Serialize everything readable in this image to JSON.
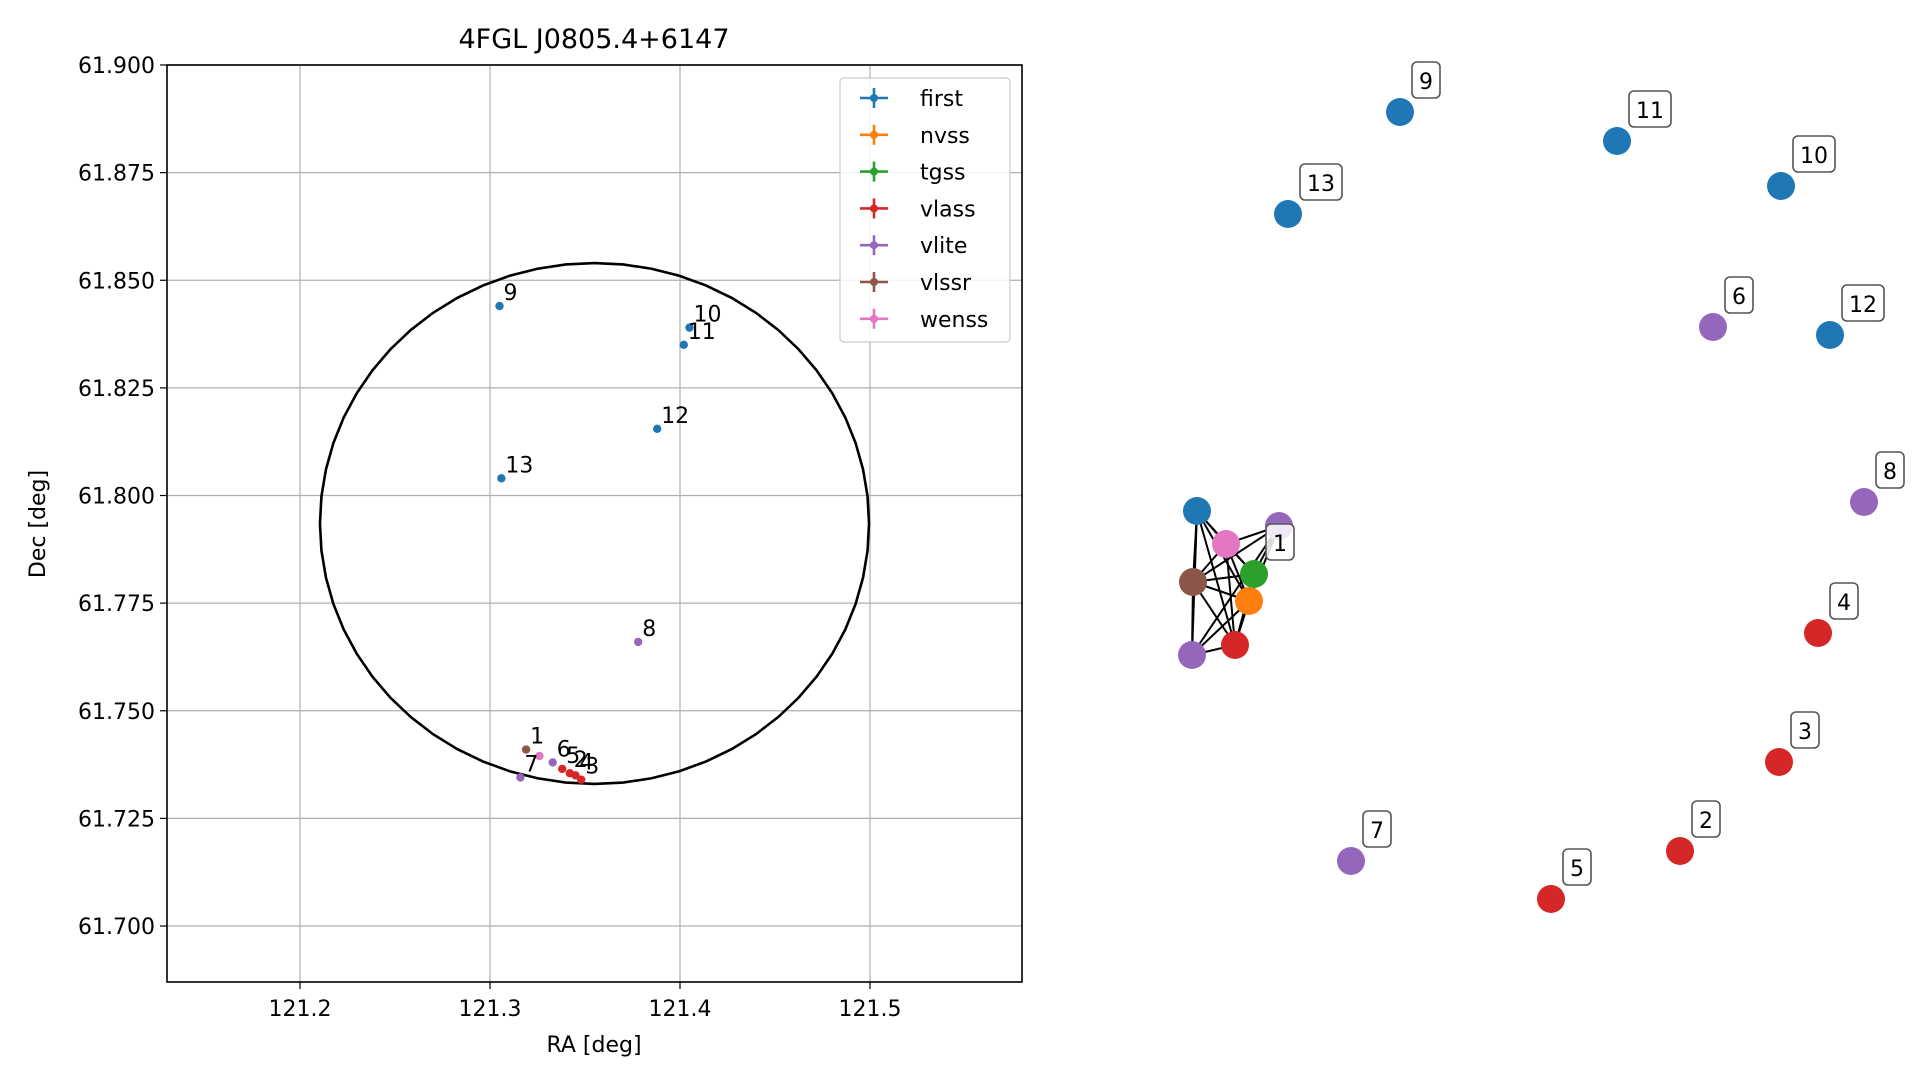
{
  "chart_data": [
    {
      "type": "scatter",
      "title": "4FGL J0805.4+6147",
      "xlabel": "RA [deg]",
      "ylabel": "Dec [deg]",
      "xlim": [
        121.13,
        121.58
      ],
      "ylim": [
        61.687,
        61.9
      ],
      "xticks": [
        121.2,
        121.3,
        121.4,
        121.5
      ],
      "xtick_labels": [
        "121.2",
        "121.3",
        "121.4",
        "121.5"
      ],
      "yticks": [
        61.7,
        61.725,
        61.75,
        61.775,
        61.8,
        61.825,
        61.85,
        61.875,
        61.9
      ],
      "ytick_labels": [
        "61.700",
        "61.725",
        "61.750",
        "61.775",
        "61.800",
        "61.825",
        "61.850",
        "61.875",
        "61.900"
      ],
      "grid": true,
      "legend_position": "top-right",
      "legend": [
        {
          "name": "first",
          "color": "#1f77b4"
        },
        {
          "name": "nvss",
          "color": "#ff7f0e"
        },
        {
          "name": "tgss",
          "color": "#2ca02c"
        },
        {
          "name": "vlass",
          "color": "#d62728"
        },
        {
          "name": "vlite",
          "color": "#9467bd"
        },
        {
          "name": "vlssr",
          "color": "#8c564b"
        },
        {
          "name": "wenss",
          "color": "#e377c2"
        }
      ],
      "ellipse": {
        "center": [
          121.355,
          61.7935
        ],
        "semi_axis_ra": 0.1445,
        "semi_axis_dec": 0.0605,
        "color": "#000000"
      },
      "points": [
        {
          "label": "9",
          "x": 121.305,
          "y": 61.844,
          "color": "#1f77b4"
        },
        {
          "label": "10",
          "x": 121.405,
          "y": 61.839,
          "color": "#1f77b4"
        },
        {
          "label": "11",
          "x": 121.402,
          "y": 61.835,
          "color": "#1f77b4"
        },
        {
          "label": "12",
          "x": 121.388,
          "y": 61.8155,
          "color": "#1f77b4"
        },
        {
          "label": "13",
          "x": 121.306,
          "y": 61.804,
          "color": "#1f77b4"
        },
        {
          "label": "8",
          "x": 121.378,
          "y": 61.766,
          "color": "#9467bd"
        },
        {
          "label": "1",
          "x": 121.319,
          "y": 61.741,
          "color": "#8c564b"
        },
        {
          "label": "6",
          "x": 121.333,
          "y": 61.738,
          "color": "#9467bd"
        },
        {
          "label": "",
          "x": 121.326,
          "y": 61.7395,
          "color": "#e377c2"
        },
        {
          "label": "7",
          "x": 121.316,
          "y": 61.7345,
          "color": "#9467bd"
        },
        {
          "label": "5",
          "x": 121.338,
          "y": 61.7365,
          "color": "#d62728"
        },
        {
          "label": "2",
          "x": 121.342,
          "y": 61.7355,
          "color": "#d62728"
        },
        {
          "label": "4",
          "x": 121.345,
          "y": 61.735,
          "color": "#d62728"
        },
        {
          "label": "3",
          "x": 121.348,
          "y": 61.734,
          "color": "#d62728"
        }
      ]
    },
    {
      "type": "network",
      "nodes": [
        {
          "id": "9",
          "label": "9",
          "color": "#1f77b4"
        },
        {
          "id": "11",
          "label": "11",
          "color": "#1f77b4"
        },
        {
          "id": "10",
          "label": "10",
          "color": "#1f77b4"
        },
        {
          "id": "13",
          "label": "13",
          "color": "#1f77b4"
        },
        {
          "id": "6",
          "label": "6",
          "color": "#9467bd"
        },
        {
          "id": "12",
          "label": "12",
          "color": "#1f77b4"
        },
        {
          "id": "8",
          "label": "8",
          "color": "#9467bd"
        },
        {
          "id": "4",
          "label": "4",
          "color": "#d62728"
        },
        {
          "id": "3",
          "label": "3",
          "color": "#d62728"
        },
        {
          "id": "2",
          "label": "2",
          "color": "#d62728"
        },
        {
          "id": "5",
          "label": "5",
          "color": "#d62728"
        },
        {
          "id": "7",
          "label": "7",
          "color": "#9467bd"
        },
        {
          "id": "c-first",
          "label": "",
          "color": "#1f77b4"
        },
        {
          "id": "c-wenss",
          "label": "",
          "color": "#e377c2"
        },
        {
          "id": "c-vlite",
          "label": "",
          "color": "#9467bd"
        },
        {
          "id": "c-tgss",
          "label": "1",
          "color": "#2ca02c"
        },
        {
          "id": "c-vlssr",
          "label": "",
          "color": "#8c564b"
        },
        {
          "id": "c-nvss",
          "label": "",
          "color": "#ff7f0e"
        },
        {
          "id": "c-vlass",
          "label": "",
          "color": "#d62728"
        },
        {
          "id": "c-vlite2",
          "label": "",
          "color": "#9467bd"
        }
      ],
      "edges": [
        [
          "c-first",
          "c-wenss"
        ],
        [
          "c-first",
          "c-vlssr"
        ],
        [
          "c-first",
          "c-vlite2"
        ],
        [
          "c-first",
          "c-nvss"
        ],
        [
          "c-first",
          "c-tgss"
        ],
        [
          "c-first",
          "c-vlass"
        ],
        [
          "c-wenss",
          "c-vlite"
        ],
        [
          "c-wenss",
          "c-vlssr"
        ],
        [
          "c-wenss",
          "c-nvss"
        ],
        [
          "c-wenss",
          "c-vlass"
        ],
        [
          "c-wenss",
          "c-tgss"
        ],
        [
          "c-vlite",
          "c-vlssr"
        ],
        [
          "c-vlite",
          "c-tgss"
        ],
        [
          "c-vlite",
          "c-nvss"
        ],
        [
          "c-vlite",
          "c-vlite2"
        ],
        [
          "c-vlssr",
          "c-tgss"
        ],
        [
          "c-vlssr",
          "c-nvss"
        ],
        [
          "c-vlssr",
          "c-vlass"
        ],
        [
          "c-vlssr",
          "c-vlite2"
        ],
        [
          "c-tgss",
          "c-nvss"
        ],
        [
          "c-tgss",
          "c-vlass"
        ],
        [
          "c-nvss",
          "c-vlass"
        ],
        [
          "c-vlass",
          "c-vlite2"
        ],
        [
          "c-nvss",
          "c-vlite2"
        ]
      ]
    }
  ]
}
